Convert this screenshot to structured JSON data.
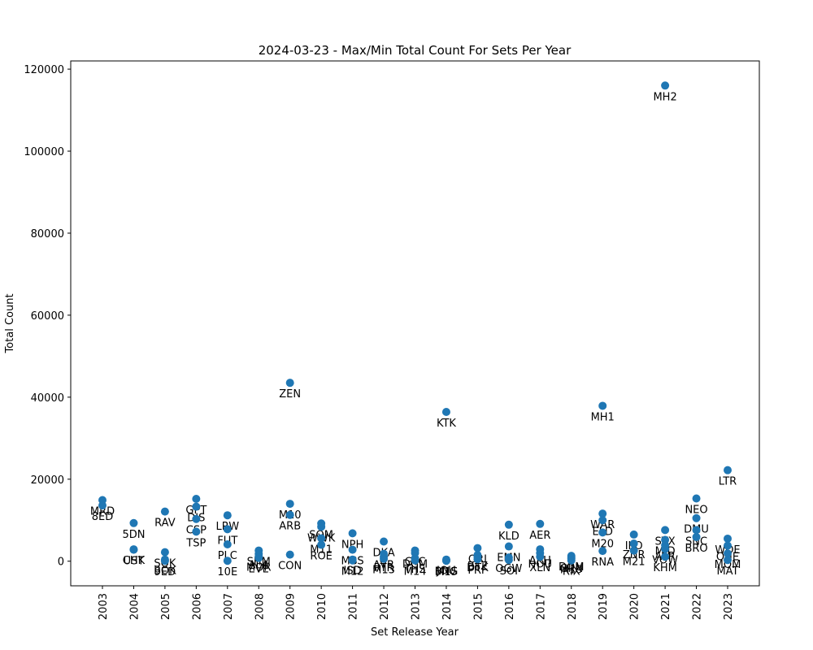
{
  "chart_data": {
    "type": "scatter",
    "title": "2024-03-23 - Max/Min Total Count For Sets Per Year",
    "xlabel": "Set Release Year",
    "ylabel": "Total Count",
    "ylim": [
      -6000,
      122000
    ],
    "yticks": [
      0,
      20000,
      40000,
      60000,
      80000,
      100000,
      120000
    ],
    "categories": [
      "2003",
      "2004",
      "2005",
      "2006",
      "2007",
      "2008",
      "2009",
      "2010",
      "2011",
      "2012",
      "2013",
      "2014",
      "2015",
      "2016",
      "2017",
      "2018",
      "2019",
      "2020",
      "2021",
      "2022",
      "2023"
    ],
    "color": "#1f77b4",
    "points": [
      {
        "x": "2003",
        "y": 14900,
        "label": "MRD"
      },
      {
        "x": "2003",
        "y": 13600,
        "label": "8ED"
      },
      {
        "x": "2004",
        "y": 9300,
        "label": "5DN"
      },
      {
        "x": "2004",
        "y": 2900,
        "label": "CHK"
      },
      {
        "x": "2004",
        "y": 2800,
        "label": "UST"
      },
      {
        "x": "2005",
        "y": 12100,
        "label": "RAV"
      },
      {
        "x": "2005",
        "y": 2200,
        "label": "SOK"
      },
      {
        "x": "2005",
        "y": 400,
        "label": "BOK"
      },
      {
        "x": "2005",
        "y": 100,
        "label": "9ED"
      },
      {
        "x": "2006",
        "y": 15200,
        "label": "GPT"
      },
      {
        "x": "2006",
        "y": 13300,
        "label": "DIS"
      },
      {
        "x": "2006",
        "y": 10300,
        "label": "CSP"
      },
      {
        "x": "2006",
        "y": 7200,
        "label": "TSP"
      },
      {
        "x": "2007",
        "y": 11200,
        "label": "LRW"
      },
      {
        "x": "2007",
        "y": 7800,
        "label": "FUT"
      },
      {
        "x": "2007",
        "y": 4100,
        "label": "PLC"
      },
      {
        "x": "2007",
        "y": 100,
        "label": "10E"
      },
      {
        "x": "2008",
        "y": 2600,
        "label": "SHM"
      },
      {
        "x": "2008",
        "y": 1800,
        "label": "ALA"
      },
      {
        "x": "2008",
        "y": 1200,
        "label": "MOR"
      },
      {
        "x": "2008",
        "y": 800,
        "label": "EVE"
      },
      {
        "x": "2009",
        "y": 43500,
        "label": "ZEN"
      },
      {
        "x": "2009",
        "y": 14000,
        "label": "M10"
      },
      {
        "x": "2009",
        "y": 11300,
        "label": "ARB"
      },
      {
        "x": "2009",
        "y": 1600,
        "label": "CON"
      },
      {
        "x": "2010",
        "y": 9200,
        "label": "SOM"
      },
      {
        "x": "2010",
        "y": 8400,
        "label": "WWK"
      },
      {
        "x": "2010",
        "y": 5600,
        "label": "M11"
      },
      {
        "x": "2010",
        "y": 4000,
        "label": "ROE"
      },
      {
        "x": "2011",
        "y": 6800,
        "label": "NPH"
      },
      {
        "x": "2011",
        "y": 2800,
        "label": "MBS"
      },
      {
        "x": "2011",
        "y": 400,
        "label": "ISD"
      },
      {
        "x": "2011",
        "y": 200,
        "label": "M12"
      },
      {
        "x": "2012",
        "y": 4800,
        "label": "DKA"
      },
      {
        "x": "2012",
        "y": 1800,
        "label": "AVR"
      },
      {
        "x": "2012",
        "y": 1100,
        "label": "RTR"
      },
      {
        "x": "2012",
        "y": 600,
        "label": "M13"
      },
      {
        "x": "2013",
        "y": 2600,
        "label": "GTC"
      },
      {
        "x": "2013",
        "y": 2000,
        "label": "DGM"
      },
      {
        "x": "2013",
        "y": 700,
        "label": "THS"
      },
      {
        "x": "2013",
        "y": 200,
        "label": "M14"
      },
      {
        "x": "2014",
        "y": 36400,
        "label": "KTK"
      },
      {
        "x": "2014",
        "y": 400,
        "label": "JOU"
      },
      {
        "x": "2014",
        "y": 200,
        "label": "BNG"
      },
      {
        "x": "2014",
        "y": 100,
        "label": "M15"
      },
      {
        "x": "2015",
        "y": 3200,
        "label": "ORI"
      },
      {
        "x": "2015",
        "y": 1500,
        "label": "BFZ"
      },
      {
        "x": "2015",
        "y": 1100,
        "label": "DTK"
      },
      {
        "x": "2015",
        "y": 500,
        "label": "FRF"
      },
      {
        "x": "2016",
        "y": 8900,
        "label": "KLD"
      },
      {
        "x": "2016",
        "y": 3600,
        "label": "EMN"
      },
      {
        "x": "2016",
        "y": 900,
        "label": "OGW"
      },
      {
        "x": "2016",
        "y": 300,
        "label": "SOI"
      },
      {
        "x": "2017",
        "y": 9100,
        "label": "AER"
      },
      {
        "x": "2017",
        "y": 2900,
        "label": "AKH"
      },
      {
        "x": "2017",
        "y": 2000,
        "label": "HOU"
      },
      {
        "x": "2017",
        "y": 1100,
        "label": "XLN"
      },
      {
        "x": "2018",
        "y": 1300,
        "label": "DOM"
      },
      {
        "x": "2018",
        "y": 900,
        "label": "GRN"
      },
      {
        "x": "2018",
        "y": 600,
        "label": "M19"
      },
      {
        "x": "2018",
        "y": 200,
        "label": "RIX"
      },
      {
        "x": "2019",
        "y": 37900,
        "label": "MH1"
      },
      {
        "x": "2019",
        "y": 11600,
        "label": "WAR"
      },
      {
        "x": "2019",
        "y": 10000,
        "label": "ELD"
      },
      {
        "x": "2019",
        "y": 7000,
        "label": "M20"
      },
      {
        "x": "2019",
        "y": 2500,
        "label": "RNA"
      },
      {
        "x": "2020",
        "y": 6500,
        "label": "IKO"
      },
      {
        "x": "2020",
        "y": 4300,
        "label": "ZNR"
      },
      {
        "x": "2020",
        "y": 2600,
        "label": "M21"
      },
      {
        "x": "2021",
        "y": 116000,
        "label": "MH2"
      },
      {
        "x": "2021",
        "y": 7600,
        "label": "STX"
      },
      {
        "x": "2021",
        "y": 5200,
        "label": "MID"
      },
      {
        "x": "2021",
        "y": 3900,
        "label": "AFR"
      },
      {
        "x": "2021",
        "y": 3000,
        "label": "VOW"
      },
      {
        "x": "2021",
        "y": 1100,
        "label": "KHM"
      },
      {
        "x": "2022",
        "y": 15300,
        "label": "NEO"
      },
      {
        "x": "2022",
        "y": 10500,
        "label": "DMU"
      },
      {
        "x": "2022",
        "y": 7600,
        "label": "SNC"
      },
      {
        "x": "2022",
        "y": 5900,
        "label": "BRO"
      },
      {
        "x": "2023",
        "y": 22200,
        "label": "LTR"
      },
      {
        "x": "2023",
        "y": 5500,
        "label": "WOE"
      },
      {
        "x": "2023",
        "y": 3800,
        "label": "ONE"
      },
      {
        "x": "2023",
        "y": 1900,
        "label": "MOM"
      },
      {
        "x": "2023",
        "y": 300,
        "label": "MAT"
      }
    ]
  }
}
